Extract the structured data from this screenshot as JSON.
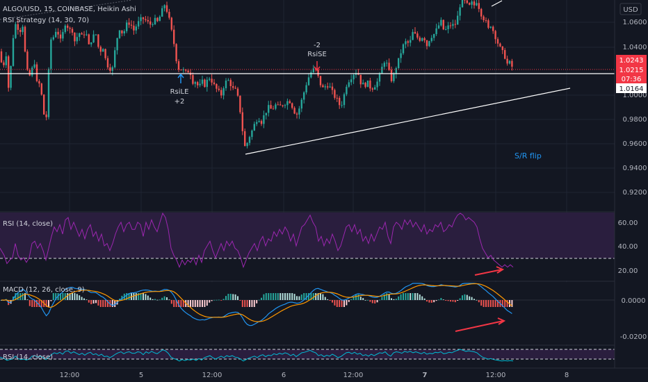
{
  "header": {
    "symbol": "ALGO/USD, 15, COINBASE, Heikin Ashi",
    "strategy": "RSI Strategy (14, 30, 70)",
    "currency": "USD"
  },
  "chart_data": {
    "type": "candlestick",
    "price_axis": {
      "ticks": [
        "1.0600",
        "1.0400",
        "1.0000",
        "0.9800",
        "0.9600",
        "0.9400",
        "0.9200"
      ]
    },
    "price_badges": [
      {
        "label": "1.0243",
        "color": "#f23645"
      },
      {
        "label": "1.0215",
        "color": "#f23645"
      },
      {
        "label": "07:36",
        "color": "#f23645"
      },
      {
        "label": "1.0164",
        "color": "#ffffff"
      }
    ],
    "time_axis": [
      "12:00",
      "5",
      "12:00",
      "6",
      "12:00",
      "7",
      "12:00",
      "8"
    ],
    "annotations": {
      "long_entry": {
        "label": "RsiLE",
        "qty": "+2"
      },
      "short_entry": {
        "label": "RsiSE",
        "qty": "-2"
      },
      "sr_note": "S/R flip"
    },
    "colors": {
      "up": "#26a69a",
      "down": "#ef5350",
      "rsi": "#9c27b0",
      "macd": "#2196f3",
      "signal": "#ff9800",
      "rsi2": "#00bcd4"
    },
    "ohlc_path": [
      [
        0,
        1.036
      ],
      [
        4,
        1.018
      ],
      [
        8,
        1.04
      ],
      [
        13,
        1.0
      ],
      [
        18,
        1.045
      ],
      [
        23,
        1.06
      ],
      [
        28,
        1.052
      ],
      [
        33,
        1.058
      ],
      [
        38,
        1.02
      ],
      [
        44,
        1.015
      ],
      [
        49,
        1.03
      ],
      [
        54,
        1.005
      ],
      [
        58,
        1.012
      ],
      [
        62,
        0.985
      ],
      [
        67,
        0.982
      ],
      [
        72,
        1.045
      ],
      [
        77,
        1.048
      ],
      [
        82,
        1.056
      ],
      [
        86,
        1.043
      ],
      [
        90,
        1.05
      ],
      [
        95,
        1.062
      ],
      [
        99,
        1.052
      ],
      [
        103,
        1.056
      ],
      [
        108,
        1.043
      ],
      [
        113,
        1.052
      ],
      [
        118,
        1.048
      ],
      [
        123,
        1.053
      ],
      [
        128,
        1.04
      ],
      [
        133,
        1.048
      ],
      [
        138,
        1.05
      ],
      [
        143,
        1.035
      ],
      [
        148,
        1.04
      ],
      [
        153,
        1.026
      ],
      [
        158,
        1.022
      ],
      [
        162,
        1.022
      ],
      [
        167,
        1.044
      ],
      [
        172,
        1.055
      ],
      [
        177,
        1.05
      ],
      [
        182,
        1.058
      ],
      [
        187,
        1.06
      ],
      [
        192,
        1.053
      ],
      [
        197,
        1.058
      ],
      [
        202,
        1.062
      ],
      [
        207,
        1.063
      ],
      [
        212,
        1.06
      ],
      [
        217,
        1.058
      ],
      [
        222,
        1.062
      ],
      [
        227,
        1.06
      ],
      [
        232,
        1.068
      ],
      [
        237,
        1.075
      ],
      [
        242,
        1.066
      ],
      [
        247,
        1.052
      ],
      [
        251,
        1.04
      ],
      [
        254,
        1.028
      ],
      [
        258,
        1.02
      ],
      [
        262,
        1.022
      ],
      [
        266,
        1.018
      ],
      [
        270,
        1.02
      ],
      [
        274,
        1.018
      ],
      [
        278,
        1.01
      ],
      [
        282,
        1.012
      ],
      [
        286,
        1.005
      ],
      [
        290,
        1.012
      ],
      [
        294,
        1.008
      ],
      [
        298,
        1.012
      ],
      [
        302,
        1.015
      ],
      [
        306,
        1.01
      ],
      [
        310,
        1.006
      ],
      [
        314,
        1.003
      ],
      [
        318,
        1.0
      ],
      [
        322,
        1.008
      ],
      [
        326,
        1.012
      ],
      [
        330,
        1.012
      ],
      [
        334,
        1.005
      ],
      [
        338,
        1.005
      ],
      [
        342,
        0.998
      ],
      [
        346,
        0.985
      ],
      [
        350,
        0.965
      ],
      [
        353,
        0.955
      ],
      [
        357,
        0.964
      ],
      [
        362,
        0.97
      ],
      [
        366,
        0.976
      ],
      [
        371,
        0.982
      ],
      [
        376,
        0.978
      ],
      [
        381,
        0.985
      ],
      [
        386,
        0.99
      ],
      [
        391,
        0.988
      ],
      [
        396,
        0.992
      ],
      [
        401,
        0.99
      ],
      [
        406,
        0.992
      ],
      [
        411,
        0.994
      ],
      [
        416,
        0.996
      ],
      [
        421,
        0.99
      ],
      [
        426,
        0.983
      ],
      [
        431,
        0.99
      ],
      [
        436,
        1.0
      ],
      [
        441,
        1.01
      ],
      [
        446,
        1.018
      ],
      [
        451,
        1.021
      ],
      [
        455,
        1.02
      ],
      [
        460,
        1.01
      ],
      [
        465,
        1.005
      ],
      [
        470,
        1.009
      ],
      [
        475,
        1.006
      ],
      [
        480,
        1.0
      ],
      [
        485,
        0.996
      ],
      [
        490,
        0.99
      ],
      [
        494,
        0.998
      ],
      [
        499,
        1.01
      ],
      [
        504,
        1.014
      ],
      [
        509,
        1.018
      ],
      [
        514,
        1.02
      ],
      [
        519,
        1.01
      ],
      [
        524,
        1.008
      ],
      [
        529,
        1.01
      ],
      [
        534,
        1.005
      ],
      [
        539,
        1.008
      ],
      [
        544,
        1.012
      ],
      [
        549,
        1.022
      ],
      [
        554,
        1.03
      ],
      [
        559,
        1.02
      ],
      [
        564,
        1.011
      ],
      [
        569,
        1.022
      ],
      [
        574,
        1.03
      ],
      [
        579,
        1.04
      ],
      [
        584,
        1.044
      ],
      [
        589,
        1.042
      ],
      [
        594,
        1.052
      ],
      [
        599,
        1.048
      ],
      [
        604,
        1.046
      ],
      [
        609,
        1.049
      ],
      [
        614,
        1.041
      ],
      [
        619,
        1.048
      ],
      [
        624,
        1.05
      ],
      [
        629,
        1.055
      ],
      [
        634,
        1.061
      ],
      [
        639,
        1.052
      ],
      [
        644,
        1.056
      ],
      [
        649,
        1.058
      ],
      [
        654,
        1.057
      ],
      [
        658,
        1.064
      ],
      [
        662,
        1.075
      ],
      [
        666,
        1.078
      ],
      [
        670,
        1.076
      ],
      [
        674,
        1.072
      ],
      [
        678,
        1.076
      ],
      [
        682,
        1.074
      ],
      [
        686,
        1.078
      ],
      [
        690,
        1.07
      ],
      [
        694,
        1.064
      ],
      [
        698,
        1.062
      ],
      [
        702,
        1.054
      ],
      [
        706,
        1.058
      ],
      [
        710,
        1.052
      ],
      [
        714,
        1.046
      ],
      [
        718,
        1.04
      ],
      [
        722,
        1.036
      ],
      [
        726,
        1.032
      ],
      [
        730,
        1.025
      ],
      [
        734,
        1.027
      ],
      [
        738,
        1.021
      ]
    ],
    "rsi_path": [
      [
        0,
        38
      ],
      [
        6,
        32
      ],
      [
        10,
        25
      ],
      [
        14,
        28
      ],
      [
        18,
        30
      ],
      [
        22,
        42
      ],
      [
        26,
        32
      ],
      [
        30,
        28
      ],
      [
        34,
        30
      ],
      [
        38,
        26
      ],
      [
        42,
        30
      ],
      [
        46,
        42
      ],
      [
        50,
        44
      ],
      [
        54,
        38
      ],
      [
        58,
        42
      ],
      [
        62,
        36
      ],
      [
        66,
        28
      ],
      [
        70,
        38
      ],
      [
        74,
        48
      ],
      [
        78,
        56
      ],
      [
        82,
        52
      ],
      [
        86,
        58
      ],
      [
        90,
        50
      ],
      [
        94,
        62
      ],
      [
        98,
        64
      ],
      [
        102,
        54
      ],
      [
        106,
        60
      ],
      [
        110,
        54
      ],
      [
        114,
        48
      ],
      [
        118,
        54
      ],
      [
        122,
        46
      ],
      [
        126,
        54
      ],
      [
        130,
        58
      ],
      [
        134,
        48
      ],
      [
        138,
        52
      ],
      [
        142,
        44
      ],
      [
        146,
        50
      ],
      [
        150,
        40
      ],
      [
        154,
        42
      ],
      [
        158,
        36
      ],
      [
        162,
        42
      ],
      [
        166,
        50
      ],
      [
        170,
        56
      ],
      [
        174,
        60
      ],
      [
        178,
        52
      ],
      [
        182,
        58
      ],
      [
        186,
        60
      ],
      [
        190,
        54
      ],
      [
        194,
        54
      ],
      [
        198,
        60
      ],
      [
        202,
        58
      ],
      [
        206,
        48
      ],
      [
        210,
        60
      ],
      [
        214,
        54
      ],
      [
        218,
        62
      ],
      [
        222,
        56
      ],
      [
        226,
        52
      ],
      [
        230,
        60
      ],
      [
        234,
        68
      ],
      [
        238,
        64
      ],
      [
        242,
        54
      ],
      [
        246,
        38
      ],
      [
        250,
        32
      ],
      [
        254,
        28
      ],
      [
        258,
        22
      ],
      [
        262,
        28
      ],
      [
        266,
        24
      ],
      [
        270,
        28
      ],
      [
        274,
        26
      ],
      [
        278,
        30
      ],
      [
        282,
        24
      ],
      [
        286,
        32
      ],
      [
        290,
        26
      ],
      [
        294,
        36
      ],
      [
        298,
        40
      ],
      [
        302,
        44
      ],
      [
        306,
        36
      ],
      [
        310,
        30
      ],
      [
        314,
        36
      ],
      [
        318,
        42
      ],
      [
        322,
        36
      ],
      [
        326,
        44
      ],
      [
        330,
        40
      ],
      [
        334,
        44
      ],
      [
        338,
        38
      ],
      [
        342,
        36
      ],
      [
        346,
        30
      ],
      [
        350,
        22
      ],
      [
        354,
        28
      ],
      [
        358,
        34
      ],
      [
        362,
        38
      ],
      [
        366,
        42
      ],
      [
        370,
        36
      ],
      [
        374,
        44
      ],
      [
        378,
        48
      ],
      [
        382,
        40
      ],
      [
        386,
        46
      ],
      [
        390,
        44
      ],
      [
        394,
        52
      ],
      [
        398,
        48
      ],
      [
        402,
        54
      ],
      [
        406,
        50
      ],
      [
        410,
        56
      ],
      [
        414,
        52
      ],
      [
        418,
        44
      ],
      [
        422,
        50
      ],
      [
        426,
        40
      ],
      [
        430,
        48
      ],
      [
        434,
        56
      ],
      [
        438,
        58
      ],
      [
        442,
        62
      ],
      [
        446,
        66
      ],
      [
        450,
        60
      ],
      [
        454,
        56
      ],
      [
        458,
        44
      ],
      [
        462,
        48
      ],
      [
        466,
        40
      ],
      [
        470,
        46
      ],
      [
        474,
        42
      ],
      [
        478,
        50
      ],
      [
        482,
        44
      ],
      [
        486,
        36
      ],
      [
        490,
        40
      ],
      [
        494,
        48
      ],
      [
        498,
        56
      ],
      [
        502,
        58
      ],
      [
        506,
        52
      ],
      [
        510,
        58
      ],
      [
        514,
        50
      ],
      [
        518,
        54
      ],
      [
        522,
        44
      ],
      [
        526,
        48
      ],
      [
        530,
        42
      ],
      [
        534,
        50
      ],
      [
        538,
        44
      ],
      [
        542,
        50
      ],
      [
        546,
        56
      ],
      [
        550,
        54
      ],
      [
        554,
        60
      ],
      [
        558,
        48
      ],
      [
        562,
        42
      ],
      [
        566,
        56
      ],
      [
        570,
        60
      ],
      [
        574,
        58
      ],
      [
        578,
        54
      ],
      [
        582,
        62
      ],
      [
        586,
        58
      ],
      [
        590,
        62
      ],
      [
        594,
        56
      ],
      [
        598,
        60
      ],
      [
        602,
        56
      ],
      [
        606,
        52
      ],
      [
        610,
        58
      ],
      [
        614,
        50
      ],
      [
        618,
        54
      ],
      [
        622,
        52
      ],
      [
        626,
        58
      ],
      [
        630,
        56
      ],
      [
        634,
        60
      ],
      [
        638,
        52
      ],
      [
        642,
        54
      ],
      [
        646,
        58
      ],
      [
        650,
        56
      ],
      [
        654,
        62
      ],
      [
        658,
        66
      ],
      [
        662,
        70
      ],
      [
        666,
        66
      ],
      [
        670,
        62
      ],
      [
        674,
        64
      ],
      [
        678,
        62
      ],
      [
        682,
        60
      ],
      [
        686,
        56
      ],
      [
        690,
        46
      ],
      [
        694,
        38
      ],
      [
        698,
        34
      ],
      [
        702,
        30
      ],
      [
        706,
        32
      ],
      [
        710,
        28
      ],
      [
        714,
        26
      ],
      [
        718,
        24
      ],
      [
        722,
        22
      ],
      [
        726,
        24
      ],
      [
        730,
        22
      ],
      [
        734,
        24
      ],
      [
        738,
        22
      ]
    ],
    "rsi_axis": [
      "60.00",
      "40.00",
      "20.00"
    ],
    "macd_axis": [
      "0.0000",
      "-0.0200"
    ]
  }
}
